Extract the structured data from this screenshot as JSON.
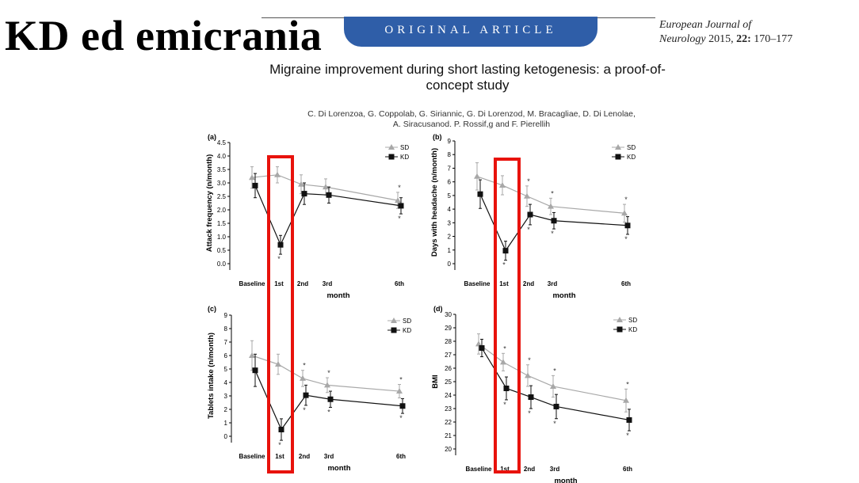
{
  "slide": {
    "title": "KD ed emicrania"
  },
  "article": {
    "banner": "ORIGINAL ARTICLE",
    "journal_line1": "European Journal of",
    "journal_name2": "Neurology",
    "journal_year": "2015,",
    "journal_volume": "22:",
    "journal_pages": "170–177",
    "title": "Migraine improvement during short lasting ketogenesis: a proof-of-concept study",
    "authors_line1": "C. Di Lorenzoa, G. Coppolab, G. Siriannic, G. Di Lorenzod, M. Bracagliae, D. Di Lenolae,",
    "authors_line2": "A. Siracusanod. P. Rossif,g and F. Pierellih"
  },
  "chart_data": [
    {
      "panel": "(a)",
      "type": "line",
      "ylabel": "Attack frequency (n/month)",
      "xlabel": "month",
      "categories": [
        "Baseline",
        "1st",
        "2nd",
        "3rd",
        "6th"
      ],
      "ylim": [
        0,
        4.5
      ],
      "yticks": [
        "0.0",
        "0.5",
        "1.0",
        "1.5",
        "2.0",
        "2.5",
        "3.0",
        "3.5",
        "4.0",
        "4.5"
      ],
      "legend": [
        "SD",
        "KD"
      ],
      "series": [
        {
          "name": "SD",
          "values": [
            3.2,
            3.3,
            2.95,
            2.85,
            2.35
          ],
          "err": [
            0.4,
            0.3,
            0.35,
            0.3,
            0.3
          ]
        },
        {
          "name": "KD",
          "values": [
            2.9,
            0.7,
            2.6,
            2.55,
            2.15
          ],
          "err": [
            0.45,
            0.35,
            0.4,
            0.3,
            0.3
          ]
        }
      ],
      "stars_above": [
        "",
        "",
        "",
        "",
        "*"
      ],
      "stars_below": [
        "",
        "*",
        "",
        "",
        "*"
      ],
      "highlight": "1st"
    },
    {
      "panel": "(b)",
      "type": "line",
      "ylabel": "Days with headache (n/month)",
      "xlabel": "month",
      "categories": [
        "Baseline",
        "1st",
        "2nd",
        "3rd",
        "6th"
      ],
      "ylim": [
        0,
        9
      ],
      "yticks": [
        "0",
        "1",
        "2",
        "3",
        "4",
        "5",
        "6",
        "7",
        "8",
        "9"
      ],
      "legend": [
        "SD",
        "KD"
      ],
      "series": [
        {
          "name": "SD",
          "values": [
            6.4,
            5.75,
            4.95,
            4.2,
            3.7
          ],
          "err": [
            1.0,
            0.7,
            0.75,
            0.6,
            0.65
          ]
        },
        {
          "name": "KD",
          "values": [
            5.1,
            0.95,
            3.6,
            3.15,
            2.8
          ],
          "err": [
            1.05,
            0.7,
            0.75,
            0.6,
            0.65
          ]
        }
      ],
      "stars_above": [
        "",
        "",
        "*",
        "*",
        "*"
      ],
      "stars_below": [
        "",
        "*",
        "*",
        "*",
        "*"
      ],
      "highlight": "1st"
    },
    {
      "panel": "(c)",
      "type": "line",
      "ylabel": "Tablets intake (n/month)",
      "xlabel": "month",
      "categories": [
        "Baseline",
        "1st",
        "2nd",
        "3rd",
        "6th"
      ],
      "ylim": [
        0,
        9
      ],
      "yticks": [
        "0",
        "1",
        "2",
        "3",
        "4",
        "5",
        "6",
        "7",
        "8",
        "9"
      ],
      "legend": [
        "SD",
        "KD"
      ],
      "series": [
        {
          "name": "SD",
          "values": [
            6.0,
            5.35,
            4.3,
            3.8,
            3.35
          ],
          "err": [
            1.1,
            0.75,
            0.6,
            0.55,
            0.5
          ]
        },
        {
          "name": "KD",
          "values": [
            4.9,
            0.5,
            3.05,
            2.75,
            2.25
          ],
          "err": [
            1.2,
            0.8,
            0.75,
            0.6,
            0.55
          ]
        }
      ],
      "stars_above": [
        "",
        "",
        "*",
        "*",
        "*"
      ],
      "stars_below": [
        "",
        "*",
        "*",
        "*",
        "*"
      ],
      "highlight": "1st"
    },
    {
      "panel": "(d)",
      "type": "line",
      "ylabel": "BMI",
      "xlabel": "month",
      "categories": [
        "Baseline",
        "1st",
        "2nd",
        "3rd",
        "6th"
      ],
      "ylim": [
        20,
        30
      ],
      "yticks": [
        "20",
        "21",
        "22",
        "23",
        "24",
        "25",
        "26",
        "27",
        "28",
        "29",
        "30"
      ],
      "legend": [
        "SD",
        "KD"
      ],
      "series": [
        {
          "name": "SD",
          "values": [
            27.8,
            26.45,
            25.45,
            24.65,
            23.6
          ],
          "err": [
            0.75,
            0.65,
            0.8,
            0.8,
            0.85
          ]
        },
        {
          "name": "KD",
          "values": [
            27.5,
            24.5,
            23.85,
            23.15,
            22.15
          ],
          "err": [
            0.65,
            0.85,
            0.85,
            0.9,
            0.8
          ]
        }
      ],
      "stars_above": [
        "",
        "*",
        "*",
        "*",
        "*"
      ],
      "stars_below": [
        "",
        "*",
        "*",
        "*",
        "*"
      ],
      "highlight": "1st"
    }
  ]
}
